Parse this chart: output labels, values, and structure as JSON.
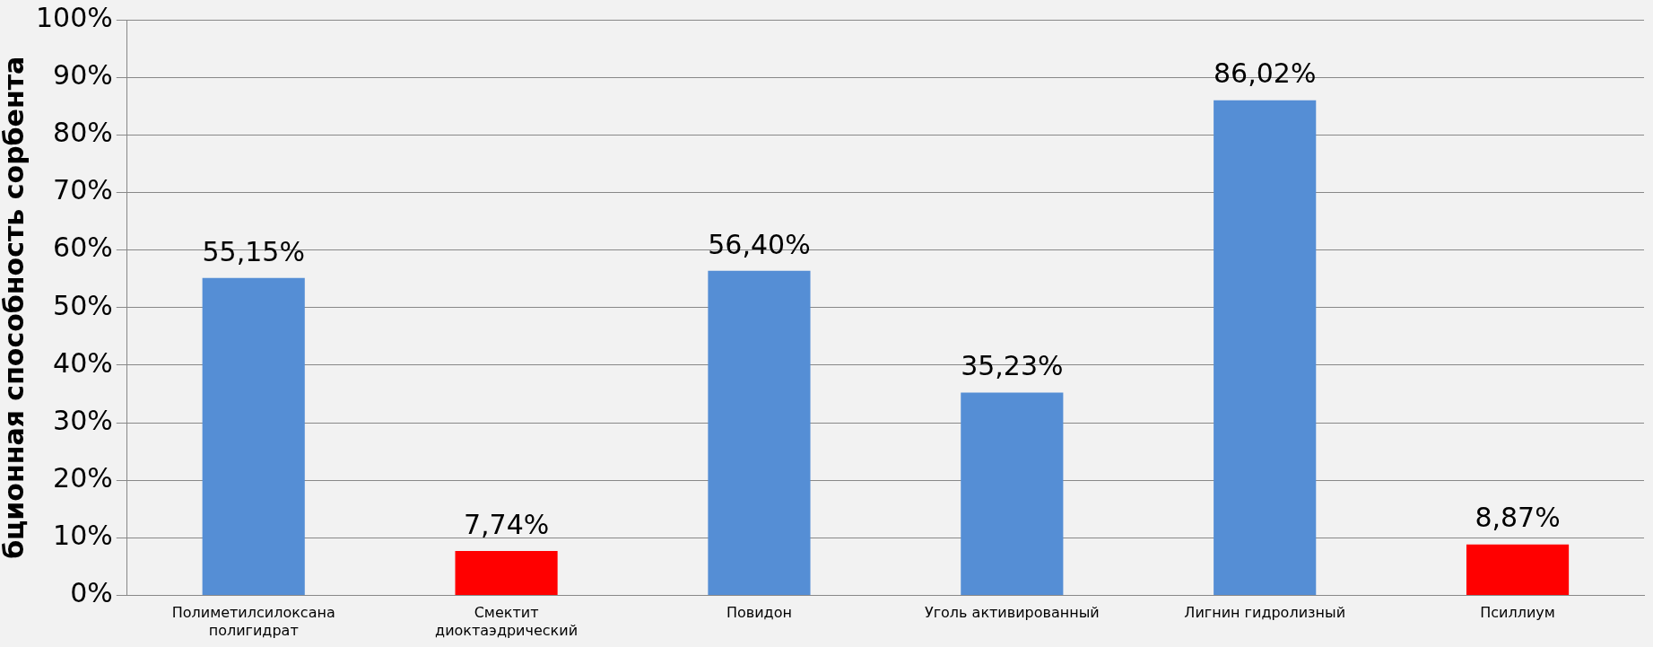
{
  "chart_data": {
    "type": "bar",
    "ylabel": "бционная способность сорбента",
    "categories": [
      "Полиметилсилоксана полигидрат",
      "Смектит диоктаэдрический",
      "Повидон",
      "Уголь активированный",
      "Лигнин гидролизный",
      "Псиллиум"
    ],
    "values": [
      55.15,
      7.74,
      56.4,
      35.23,
      86.02,
      8.87
    ],
    "colors": [
      "#558ed5",
      "#ff0000",
      "#558ed5",
      "#558ed5",
      "#558ed5",
      "#ff0000"
    ],
    "value_labels": [
      "55,15%",
      "7,74%",
      "56,40%",
      "35,23%",
      "86,02%",
      "8,87%"
    ],
    "ylim": [
      0,
      100
    ],
    "yticks": [
      {
        "value": 0,
        "label": "0%"
      },
      {
        "value": 10,
        "label": "10%"
      },
      {
        "value": 20,
        "label": "20%"
      },
      {
        "value": 30,
        "label": "30%"
      },
      {
        "value": 40,
        "label": "40%"
      },
      {
        "value": 50,
        "label": "50%"
      },
      {
        "value": 60,
        "label": "60%"
      },
      {
        "value": 70,
        "label": "70%"
      },
      {
        "value": 80,
        "label": "80%"
      },
      {
        "value": 90,
        "label": "90%"
      },
      {
        "value": 100,
        "label": "100%"
      }
    ],
    "grid": "y",
    "legend": false
  }
}
